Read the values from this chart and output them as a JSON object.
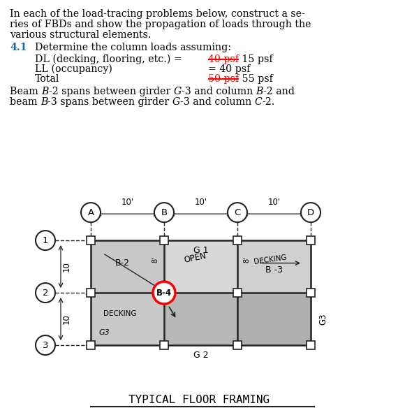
{
  "bg_color": "#ffffff",
  "fig_width": 5.7,
  "fig_height": 5.94,
  "intro_line1": "In each of the load-tracing problems below, construct a se-",
  "intro_line2": "ries of FBDs and show the propagation of loads through the",
  "intro_line3": "various structural elements.",
  "section_num": "4.1",
  "section_title": "Determine the column loads assuming:",
  "dl_label": "DL (decking, flooring, etc.)",
  "dl_equals": " = ",
  "dl_strike": "40 psf",
  "dl_value": " 15 psf",
  "ll_label": "LL (occupancy)",
  "ll_equals": "            = 40 psf",
  "total_label": "Total",
  "total_strike": "50 psf",
  "total_value": " 55 psf",
  "beam_line1a": "Beam ",
  "beam_line1b": "B",
  "beam_line1c": "-2 spans between girder ",
  "beam_line1d": "G",
  "beam_line1e": "-3 and column ",
  "beam_line1f": "B",
  "beam_line1g": "-2 and",
  "beam_line2a": "beam ",
  "beam_line2b": "B",
  "beam_line2c": "-3 spans between girder ",
  "beam_line2d": "G",
  "beam_line2e": "-3 and column ",
  "beam_line2f": "C",
  "beam_line2g": "-2.",
  "diagram_title": "TYPICAL FLOOR FRAMING",
  "col_labels": [
    "A",
    "B",
    "C",
    "D"
  ],
  "row_labels": [
    "1",
    "2",
    "3"
  ],
  "grid_color": "#222222",
  "highlight_color": "#ff0000",
  "shade_left": "#c8c8c8",
  "shade_mid_top": "#d8d8d8",
  "shade_mid_bot": "#b8b8b8",
  "shade_right_top": "#d0d0d0",
  "shade_right_bot": "#b0b0b0"
}
